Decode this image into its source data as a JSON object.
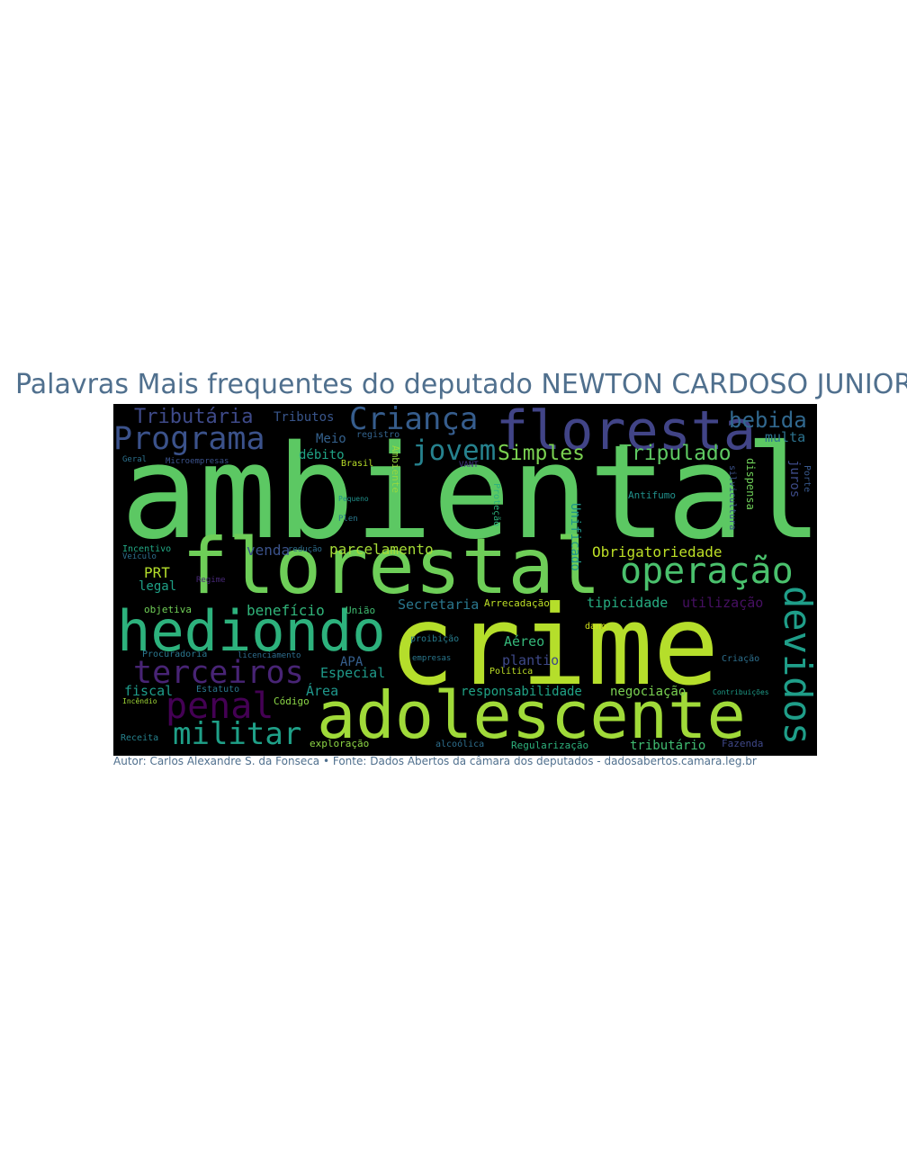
{
  "title": "Palavras Mais frequentes do deputado NEWTON CARDOSO JUNIOR",
  "caption": "Autor: Carlos Alexandre S. da Fonseca • Fonte: Dados Abertos da câmara dos deputados - dadosabertos.camara.leg.br",
  "colors": {
    "background": "#ffffff",
    "panel": "#000000",
    "title": "#50708e"
  },
  "words": [
    {
      "text": "ambiental",
      "color": "#5cc863"
    },
    {
      "text": "crime",
      "color": "#b5de2b"
    },
    {
      "text": "florestal",
      "color": "#6ece58"
    },
    {
      "text": "adolescente",
      "color": "#a0da39"
    },
    {
      "text": "floresta",
      "color": "#414487"
    },
    {
      "text": "hediondo",
      "color": "#2db27d"
    },
    {
      "text": "operação",
      "color": "#4ac16d"
    },
    {
      "text": "devidos",
      "color": "#1f9e89"
    },
    {
      "text": "Programa",
      "color": "#3b528b"
    },
    {
      "text": "Criança",
      "color": "#365d8d"
    },
    {
      "text": "terceiros",
      "color": "#482475"
    },
    {
      "text": "penal",
      "color": "#440154"
    },
    {
      "text": "militar",
      "color": "#1fa088"
    },
    {
      "text": "jovem",
      "color": "#26828e"
    },
    {
      "text": "Simples",
      "color": "#7ad151"
    },
    {
      "text": "Tripulado",
      "color": "#5ec962"
    },
    {
      "text": "bebida",
      "color": "#31688e"
    },
    {
      "text": "Tributária",
      "color": "#3e4a89"
    },
    {
      "text": "Tributos",
      "color": "#39568c"
    },
    {
      "text": "multa",
      "color": "#2c728e"
    },
    {
      "text": "Meio",
      "color": "#34618d"
    },
    {
      "text": "registro",
      "color": "#33638d"
    },
    {
      "text": "débito",
      "color": "#20a486"
    },
    {
      "text": "Brasil",
      "color": "#b8de29"
    },
    {
      "text": "Ambiente",
      "color": "#95d840"
    },
    {
      "text": "VANT",
      "color": "#443983"
    },
    {
      "text": "Geral",
      "color": "#2c728e"
    },
    {
      "text": "Microempresas",
      "color": "#3b528b"
    },
    {
      "text": "juros",
      "color": "#3e4c8a"
    },
    {
      "text": "Porte",
      "color": "#38588c"
    },
    {
      "text": "dispensa",
      "color": "#6ece58"
    },
    {
      "text": "silvicultura",
      "color": "#3b528b"
    },
    {
      "text": "Antifumo",
      "color": "#21918c"
    },
    {
      "text": "Pequeno",
      "color": "#21918c"
    },
    {
      "text": "Plen",
      "color": "#2a788e"
    },
    {
      "text": "Proteção",
      "color": "#2db27d"
    },
    {
      "text": "Unificado",
      "color": "#1f958b"
    },
    {
      "text": "Obrigatoriedade",
      "color": "#bddf26"
    },
    {
      "text": "Incentivo",
      "color": "#22a884"
    },
    {
      "text": "Veículo",
      "color": "#2d708e"
    },
    {
      "text": "venda",
      "color": "#3b528b"
    },
    {
      "text": "redução",
      "color": "#2e6e8e"
    },
    {
      "text": "parcelamento",
      "color": "#a5db36"
    },
    {
      "text": "PRT",
      "color": "#b5de2b"
    },
    {
      "text": "legal",
      "color": "#1fa187"
    },
    {
      "text": "Regime",
      "color": "#482878"
    },
    {
      "text": "Secretaria",
      "color": "#2a778e"
    },
    {
      "text": "Arrecadação",
      "color": "#bddf26"
    },
    {
      "text": "tipicidade",
      "color": "#26ad81"
    },
    {
      "text": "utilização",
      "color": "#471063"
    },
    {
      "text": "objetiva",
      "color": "#70cf57"
    },
    {
      "text": "benefício",
      "color": "#31b57b"
    },
    {
      "text": "União",
      "color": "#40bd72"
    },
    {
      "text": "dano",
      "color": "#d2e21b"
    },
    {
      "text": "proibição",
      "color": "#287d8e"
    },
    {
      "text": "Aéreo",
      "color": "#35b779"
    },
    {
      "text": "Procuradoria",
      "color": "#2a778e"
    },
    {
      "text": "licenciamento",
      "color": "#2e6d8e"
    },
    {
      "text": "empresas",
      "color": "#2a788e"
    },
    {
      "text": "APA",
      "color": "#355f8d"
    },
    {
      "text": "plantio",
      "color": "#3e4989"
    },
    {
      "text": "Criação",
      "color": "#2d708e"
    },
    {
      "text": "Especial",
      "color": "#1f9a8a"
    },
    {
      "text": "Política",
      "color": "#bddf26"
    },
    {
      "text": "fiscal",
      "color": "#1e9b8a"
    },
    {
      "text": "Estatuto",
      "color": "#2a768e"
    },
    {
      "text": "Área",
      "color": "#1f968b"
    },
    {
      "text": "responsabilidade",
      "color": "#20a386"
    },
    {
      "text": "negociação",
      "color": "#7ad151"
    },
    {
      "text": "Incêndio",
      "color": "#a2da37"
    },
    {
      "text": "Código",
      "color": "#8bd646"
    },
    {
      "text": "Contribuições",
      "color": "#1e9c89"
    },
    {
      "text": "Receita",
      "color": "#26828e"
    },
    {
      "text": "exploração",
      "color": "#8ed645"
    },
    {
      "text": "alcoólica",
      "color": "#2e6f8e"
    },
    {
      "text": "Regularização",
      "color": "#2db27d"
    },
    {
      "text": "tributário",
      "color": "#40bd72"
    },
    {
      "text": "Fazenda",
      "color": "#3f4889"
    }
  ]
}
